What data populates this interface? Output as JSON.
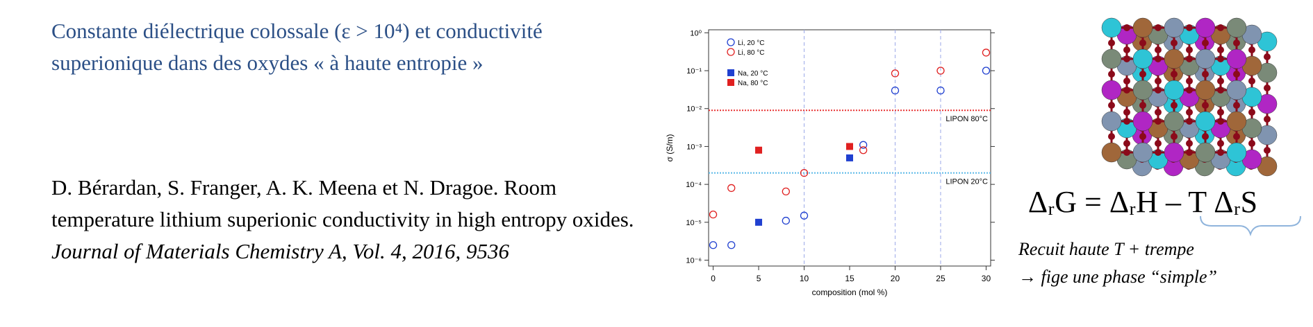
{
  "slide": {
    "title": "Constante diélectrique colossale (ε > 10⁴) et conductivité superionique dans des oxydes « à haute entropie »",
    "reference": {
      "authors_title": "D. Bérardan, S. Franger, A. K. Meena et N. Dragoe. Room temperature lithium superionic conductivity in high entropy oxides.",
      "journal": "Journal of Materials Chemistry A, Vol. 4, 2016, 9536"
    },
    "equation": "ΔᵣG = ΔᵣH – T ΔᵣS",
    "caption": [
      "Recuit haute T + trempe",
      "→ fige une phase “simple”"
    ]
  },
  "chart_data": {
    "type": "scatter",
    "x_label": "composition (mol %)",
    "y_label": "σ (S/m)",
    "log_y": true,
    "xlim": [
      -0.5,
      30.5
    ],
    "ylim": [
      7e-07,
      1.2
    ],
    "xticks": [
      0,
      5,
      10,
      15,
      20,
      25,
      30
    ],
    "yticks": [
      {
        "value": 1e-06,
        "label": "10⁻⁶"
      },
      {
        "value": 1e-05,
        "label": "10⁻⁵"
      },
      {
        "value": 0.0001,
        "label": "10⁻⁴"
      },
      {
        "value": 0.001,
        "label": "10⁻³"
      },
      {
        "value": 0.01,
        "label": "10⁻²"
      },
      {
        "value": 0.1,
        "label": "10⁻¹"
      },
      {
        "value": 1,
        "label": "10⁰"
      }
    ],
    "x_guides": [
      10,
      20,
      25
    ],
    "reference_lines": [
      {
        "label": "LIPON 80°C",
        "value": 0.009,
        "color": "#e83030"
      },
      {
        "label": "LIPON 20°C",
        "value": 0.0002,
        "color": "#58b8e8"
      }
    ],
    "legend": "upper left",
    "series": [
      {
        "name": "Li, 20 °C",
        "color": "#2040d0",
        "marker": "open-circle",
        "x": [
          0,
          2,
          8,
          10,
          16.5,
          20,
          25,
          30
        ],
        "values": [
          2.5e-06,
          2.5e-06,
          1.1e-05,
          1.5e-05,
          0.0011,
          0.03,
          0.03,
          0.1
        ]
      },
      {
        "name": "Li, 80 °C",
        "color": "#e02020",
        "marker": "open-circle",
        "x": [
          0,
          2,
          8,
          10,
          16.5,
          20,
          25,
          30
        ],
        "values": [
          1.6e-05,
          8e-05,
          6.5e-05,
          0.0002,
          0.0008,
          0.085,
          0.1,
          0.3
        ]
      },
      {
        "name": "Na, 20 °C",
        "color": "#2040d0",
        "marker": "square",
        "x": [
          5,
          15
        ],
        "values": [
          1e-05,
          0.0005
        ]
      },
      {
        "name": "Na, 80 °C",
        "color": "#e02020",
        "marker": "square",
        "x": [
          5,
          15
        ],
        "values": [
          0.0008,
          0.001
        ]
      }
    ]
  }
}
